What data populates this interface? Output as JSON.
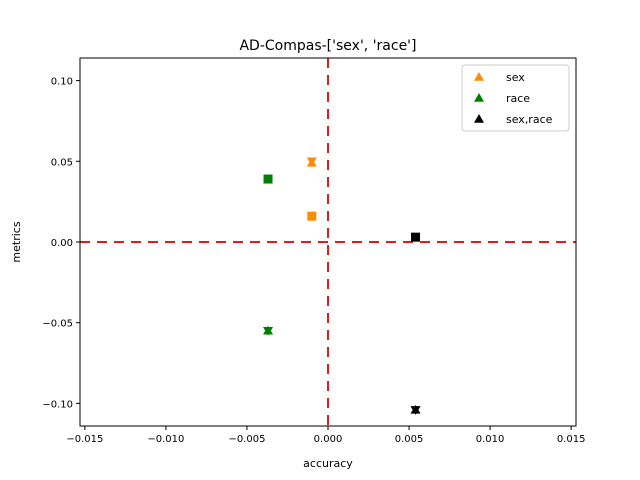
{
  "chart_data": {
    "type": "scatter",
    "title": "AD-Compas-['sex', 'race']",
    "xlabel": "accuracy",
    "ylabel": "metrics",
    "xlim": [
      -0.0153,
      0.0153
    ],
    "ylim": [
      -0.114,
      0.114
    ],
    "xticks": [
      -0.015,
      -0.01,
      -0.005,
      0.0,
      0.005,
      0.01,
      0.015
    ],
    "xtick_labels": [
      "−0.015",
      "−0.010",
      "−0.005",
      "0.000",
      "0.005",
      "0.010",
      "0.015"
    ],
    "yticks": [
      -0.1,
      -0.05,
      0.0,
      0.05,
      0.1
    ],
    "ytick_labels": [
      "−0.10",
      "−0.05",
      "0.00",
      "0.05",
      "0.10"
    ],
    "grid": false,
    "reference_lines": {
      "x": 0.0,
      "y": 0.0,
      "color": "#e41a1c",
      "style": "dashed"
    },
    "legend": {
      "placement": "top-right",
      "entries": [
        {
          "name": "sex",
          "color": "#ff8c00",
          "marker": "triangle-up"
        },
        {
          "name": "race",
          "color": "#008000",
          "marker": "triangle-up"
        },
        {
          "name": "sex,race",
          "color": "#000000",
          "marker": "triangle-up"
        }
      ]
    },
    "series": [
      {
        "name": "sex",
        "color": "#ff8c00",
        "points": [
          {
            "x": -0.001,
            "y": 0.016,
            "marker": "square"
          },
          {
            "x": -0.001,
            "y": 0.05,
            "marker": "triangle-down"
          },
          {
            "x": -0.001,
            "y": 0.049,
            "marker": "triangle-up"
          }
        ]
      },
      {
        "name": "race",
        "color": "#008000",
        "points": [
          {
            "x": -0.0037,
            "y": 0.039,
            "marker": "square"
          },
          {
            "x": -0.0037,
            "y": -0.055,
            "marker": "triangle-down"
          },
          {
            "x": -0.0037,
            "y": -0.055,
            "marker": "triangle-up"
          }
        ]
      },
      {
        "name": "sex,race",
        "color": "#000000",
        "points": [
          {
            "x": 0.0054,
            "y": 0.003,
            "marker": "square"
          },
          {
            "x": 0.0054,
            "y": -0.104,
            "marker": "triangle-down"
          },
          {
            "x": 0.0054,
            "y": -0.104,
            "marker": "triangle-up"
          }
        ]
      }
    ]
  }
}
